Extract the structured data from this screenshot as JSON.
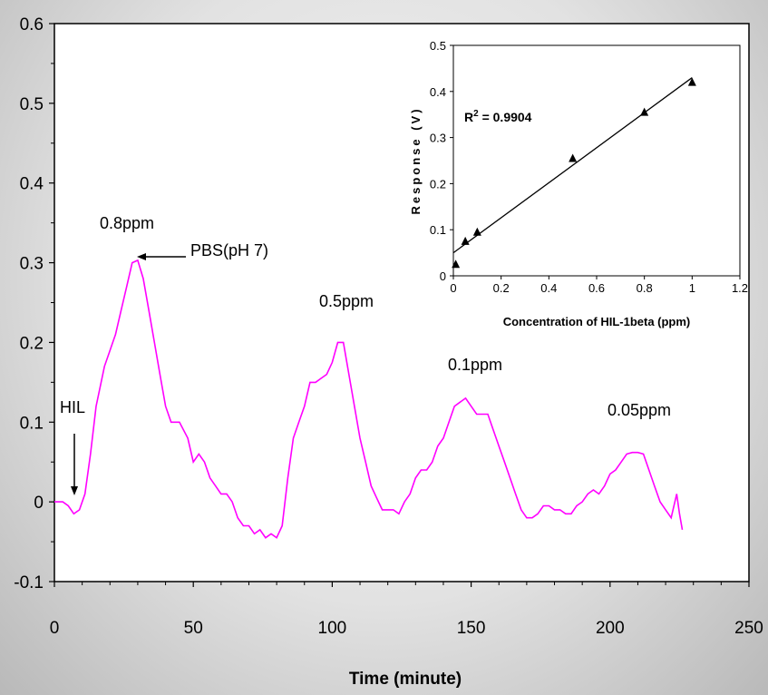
{
  "chart_data": [
    {
      "type": "line",
      "title": "",
      "xlabel": "Time (minute)",
      "ylabel": "",
      "xlim": [
        0,
        250
      ],
      "ylim": [
        -0.1,
        0.6
      ],
      "x_ticks": [
        "0",
        "50",
        "100",
        "150",
        "200",
        "250"
      ],
      "y_ticks": [
        "-0.1",
        "0",
        "0.1",
        "0.2",
        "0.3",
        "0.4",
        "0.5",
        "0.6"
      ],
      "grid": false,
      "series": [
        {
          "color": "#ff00ff",
          "x": [
            0,
            3,
            5,
            7,
            9,
            11,
            13,
            15,
            18,
            20,
            22,
            24,
            26,
            28,
            30,
            32,
            34,
            36,
            38,
            40,
            42,
            45,
            48,
            50,
            52,
            54,
            56,
            58,
            60,
            62,
            64,
            66,
            68,
            70,
            72,
            74,
            76,
            78,
            80,
            82,
            84,
            86,
            88,
            90,
            92,
            94,
            96,
            98,
            100,
            102,
            104,
            106,
            108,
            110,
            112,
            114,
            116,
            118,
            120,
            122,
            124,
            126,
            128,
            130,
            132,
            134,
            136,
            138,
            140,
            142,
            144,
            146,
            148,
            150,
            152,
            154,
            156,
            158,
            160,
            162,
            164,
            166,
            168,
            170,
            172,
            174,
            176,
            178,
            180,
            182,
            184,
            186,
            188,
            190,
            192,
            194,
            196,
            198,
            200,
            202,
            204,
            206,
            208,
            210,
            212,
            214,
            216,
            218,
            220,
            222,
            224,
            225,
            226
          ],
          "values": [
            0.0,
            0.0,
            -0.005,
            -0.015,
            -0.01,
            0.01,
            0.06,
            0.12,
            0.17,
            0.19,
            0.21,
            0.24,
            0.27,
            0.3,
            0.303,
            0.28,
            0.24,
            0.2,
            0.16,
            0.12,
            0.1,
            0.1,
            0.08,
            0.05,
            0.06,
            0.05,
            0.03,
            0.02,
            0.01,
            0.01,
            0.0,
            -0.02,
            -0.03,
            -0.03,
            -0.04,
            -0.035,
            -0.045,
            -0.04,
            -0.045,
            -0.03,
            0.03,
            0.08,
            0.1,
            0.12,
            0.15,
            0.15,
            0.155,
            0.16,
            0.175,
            0.2,
            0.2,
            0.16,
            0.12,
            0.08,
            0.05,
            0.02,
            0.005,
            -0.01,
            -0.01,
            -0.01,
            -0.015,
            0.0,
            0.01,
            0.03,
            0.04,
            0.04,
            0.05,
            0.07,
            0.08,
            0.1,
            0.12,
            0.125,
            0.13,
            0.12,
            0.11,
            0.11,
            0.11,
            0.09,
            0.07,
            0.05,
            0.03,
            0.01,
            -0.01,
            -0.02,
            -0.02,
            -0.015,
            -0.005,
            -0.005,
            -0.01,
            -0.01,
            -0.015,
            -0.015,
            -0.005,
            0.0,
            0.01,
            0.015,
            0.01,
            0.02,
            0.035,
            0.04,
            0.05,
            0.06,
            0.062,
            0.062,
            0.06,
            0.04,
            0.02,
            0.0,
            -0.01,
            -0.02,
            0.01,
            -0.015,
            -0.035
          ]
        }
      ],
      "annotations": [
        {
          "text": "HIL",
          "x": 7,
          "y": 0.1
        },
        {
          "text": "0.8ppm",
          "x": 30,
          "y": 0.35
        },
        {
          "text": "PBS(pH 7)",
          "x": 55,
          "y": 0.3
        },
        {
          "text": "0.5ppm",
          "x": 106,
          "y": 0.25
        },
        {
          "text": "0.1ppm",
          "x": 150,
          "y": 0.175
        },
        {
          "text": "0.05ppm",
          "x": 210,
          "y": 0.12
        }
      ]
    },
    {
      "type": "scatter",
      "title": "",
      "xlabel": "Concentration of HIL-1beta (ppm)",
      "ylabel": "Response (V)",
      "xlim": [
        0,
        1.2
      ],
      "ylim": [
        0,
        0.5
      ],
      "x_ticks": [
        "0",
        "0.2",
        "0.4",
        "0.6",
        "0.8",
        "1",
        "1.2"
      ],
      "y_ticks": [
        "0",
        "0.1",
        "0.2",
        "0.3",
        "0.4",
        "0.5"
      ],
      "series": [
        {
          "marker": "triangle",
          "color": "#000000",
          "x": [
            0.01,
            0.05,
            0.1,
            0.5,
            0.8,
            1.0
          ],
          "values": [
            0.025,
            0.075,
            0.095,
            0.255,
            0.355,
            0.42
          ]
        }
      ],
      "trendline": {
        "x": [
          0,
          1.0
        ],
        "values": [
          0.05,
          0.43
        ]
      },
      "r2_label": {
        "prefix": "R",
        "sup": "2",
        "suffix": " = 0.9904"
      }
    }
  ]
}
